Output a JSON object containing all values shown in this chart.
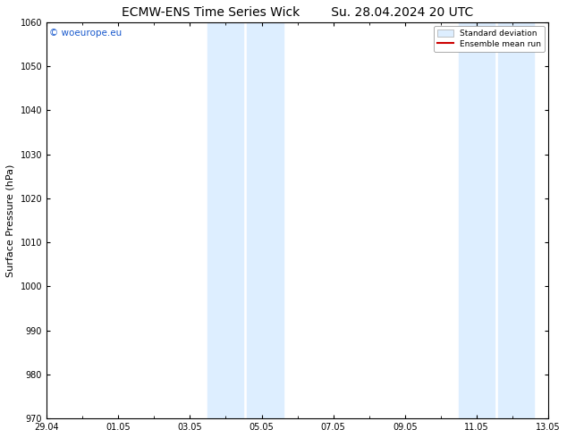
{
  "title_left": "ECMW-ENS Time Series Wick",
  "title_right": "Su. 28.04.2024 20 UTC",
  "ylabel": "Surface Pressure (hPa)",
  "ylim": [
    970,
    1060
  ],
  "yticks": [
    970,
    980,
    990,
    1000,
    1010,
    1020,
    1030,
    1040,
    1050,
    1060
  ],
  "xtick_labels": [
    "29.04",
    "01.05",
    "03.05",
    "05.05",
    "07.05",
    "09.05",
    "11.05",
    "13.05"
  ],
  "xtick_positions": [
    0,
    2,
    4,
    6,
    8,
    10,
    12,
    14
  ],
  "shaded_bands": [
    {
      "x_start": 4.5,
      "x_end": 5.5
    },
    {
      "x_start": 5.6,
      "x_end": 6.6
    },
    {
      "x_start": 11.5,
      "x_end": 12.5
    },
    {
      "x_start": 12.6,
      "x_end": 13.6
    }
  ],
  "shaded_color": "#ddeeff",
  "watermark_text": "© woeurope.eu",
  "watermark_color": "#1a5acd",
  "legend_std_label": "Standard deviation",
  "legend_mean_label": "Ensemble mean run",
  "legend_std_color": "#ddeeff",
  "legend_mean_color": "#cc0000",
  "bg_color": "#ffffff",
  "axis_bg_color": "#ffffff",
  "title_fontsize": 10,
  "tick_fontsize": 7,
  "ylabel_fontsize": 8
}
